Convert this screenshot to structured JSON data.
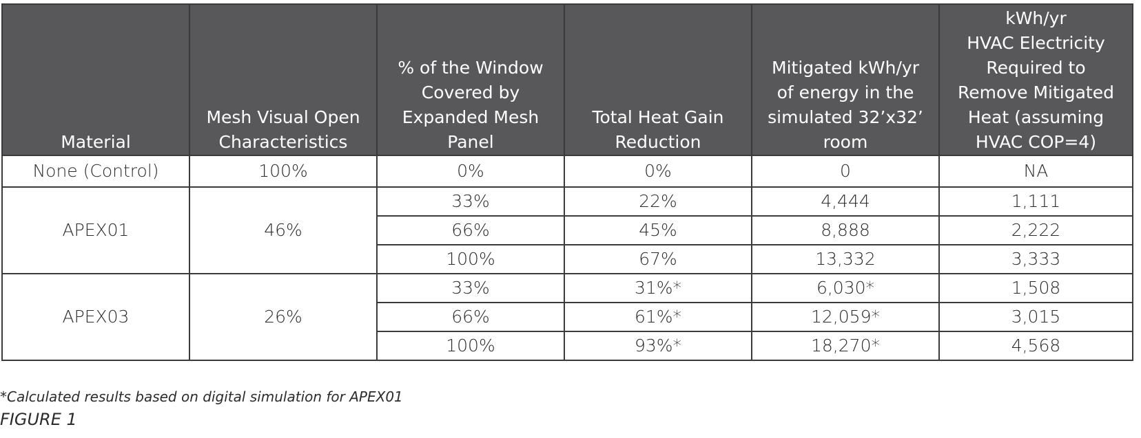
{
  "table": {
    "headers": [
      [
        "Material"
      ],
      [
        "Mesh Visual Open",
        "Characteristics"
      ],
      [
        "% of the Window",
        "Covered by",
        "Expanded Mesh",
        "Panel"
      ],
      [
        "Total Heat Gain",
        "Reduction"
      ],
      [
        "Mitigated kWh/yr",
        "of energy in the",
        "simulated 32’x32’",
        "room"
      ],
      [
        "kWh/yr",
        "HVAC Electricity",
        "Required to",
        "Remove Mitigated",
        "Heat (assuming",
        "HVAC COP=4)"
      ]
    ],
    "control_row": {
      "material": "None (Control)",
      "open": "100%",
      "covered": "0%",
      "reduction": "0%",
      "mitigated": "0",
      "hvac": "NA"
    },
    "groups": [
      {
        "material": "APEX01",
        "open": "46%",
        "rows": [
          {
            "covered": "33%",
            "reduction": "22%",
            "mitigated": "4,444",
            "hvac": "1,111"
          },
          {
            "covered": "66%",
            "reduction": "45%",
            "mitigated": "8,888",
            "hvac": "2,222"
          },
          {
            "covered": "100%",
            "reduction": "67%",
            "mitigated": "13,332",
            "hvac": "3,333"
          }
        ]
      },
      {
        "material": "APEX03",
        "open": "26%",
        "rows": [
          {
            "covered": "33%",
            "reduction": "31%*",
            "mitigated": "6,030*",
            "hvac": "1,508"
          },
          {
            "covered": "66%",
            "reduction": "61%*",
            "mitigated": "12,059*",
            "hvac": "3,015"
          },
          {
            "covered": "100%",
            "reduction": "93%*",
            "mitigated": "18,270*",
            "hvac": "4,568"
          }
        ]
      }
    ]
  },
  "footnote": "*Calculated results based on digital simulation for APEX01",
  "figure_label": "FIGURE 1",
  "colors": {
    "header_bg": "#58585a",
    "header_text": "#ffffff",
    "border": "#3a3a3a",
    "text": "#2b2b2b"
  }
}
